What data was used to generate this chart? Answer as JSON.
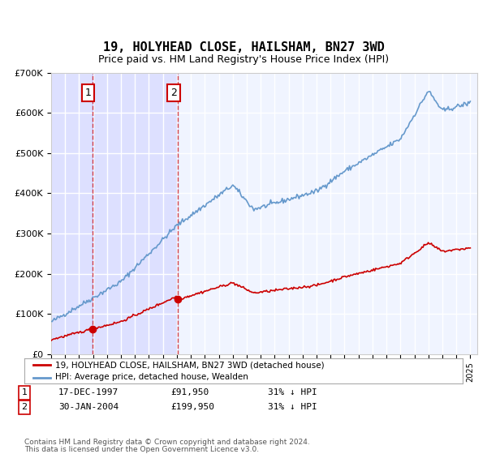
{
  "title": "19, HOLYHEAD CLOSE, HAILSHAM, BN27 3WD",
  "subtitle": "Price paid vs. HM Land Registry's House Price Index (HPI)",
  "ylabel": "",
  "background_color": "#ffffff",
  "plot_bg_color": "#f0f4ff",
  "grid_color": "#ffffff",
  "hpi_color": "#6699cc",
  "price_color": "#cc0000",
  "purchase1_date": 1997.96,
  "purchase1_price": 91950,
  "purchase2_date": 2004.08,
  "purchase2_price": 199950,
  "legend_label1": "19, HOLYHEAD CLOSE, HAILSHAM, BN27 3WD (detached house)",
  "legend_label2": "HPI: Average price, detached house, Wealden",
  "table_row1": [
    "1",
    "17-DEC-1997",
    "£91,950",
    "31% ↓ HPI"
  ],
  "table_row2": [
    "2",
    "30-JAN-2004",
    "£199,950",
    "31% ↓ HPI"
  ],
  "footnote1": "Contains HM Land Registry data © Crown copyright and database right 2024.",
  "footnote2": "This data is licensed under the Open Government Licence v3.0.",
  "xmin": 1995.0,
  "xmax": 2025.5,
  "ymin": 0,
  "ymax": 700000
}
